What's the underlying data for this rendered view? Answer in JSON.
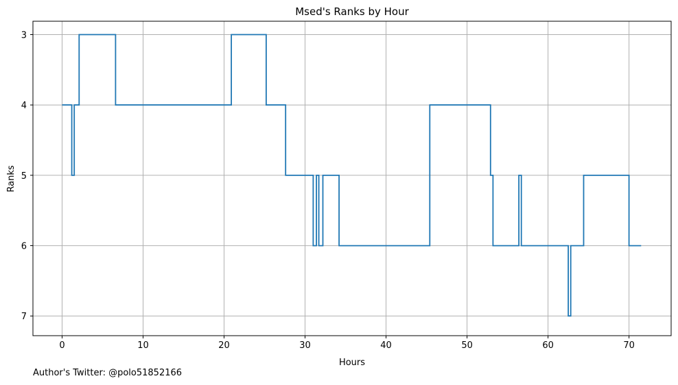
{
  "chart_data": {
    "type": "line",
    "title": "Msed's Ranks by Hour",
    "xlabel": "Hours",
    "ylabel": "Ranks",
    "xlim": [
      -3.6,
      75.2
    ],
    "ylim": [
      7.28,
      2.81
    ],
    "y_inverted": true,
    "xticks": [
      0,
      10,
      20,
      30,
      40,
      50,
      60,
      70
    ],
    "yticks": [
      3,
      4,
      5,
      6,
      7
    ],
    "grid": true,
    "step": "post",
    "line_color": "#1f77b4",
    "series": [
      {
        "x": [
          0,
          1.2,
          1.5,
          2.1,
          6.6,
          20.9,
          25.2,
          27.6,
          31.0,
          31.4,
          31.7,
          32.2,
          34.2,
          45.4,
          52.9,
          53.2,
          56.4,
          56.7,
          62.5,
          62.8,
          64.4,
          70.0,
          71.5
        ],
        "y": [
          4,
          5,
          4,
          3,
          4,
          3,
          4,
          5,
          6,
          5,
          6,
          5,
          6,
          4,
          5,
          6,
          5,
          6,
          7,
          6,
          5,
          6,
          6
        ]
      }
    ]
  },
  "footer": {
    "credit": "Author's Twitter: @polo51852166"
  }
}
